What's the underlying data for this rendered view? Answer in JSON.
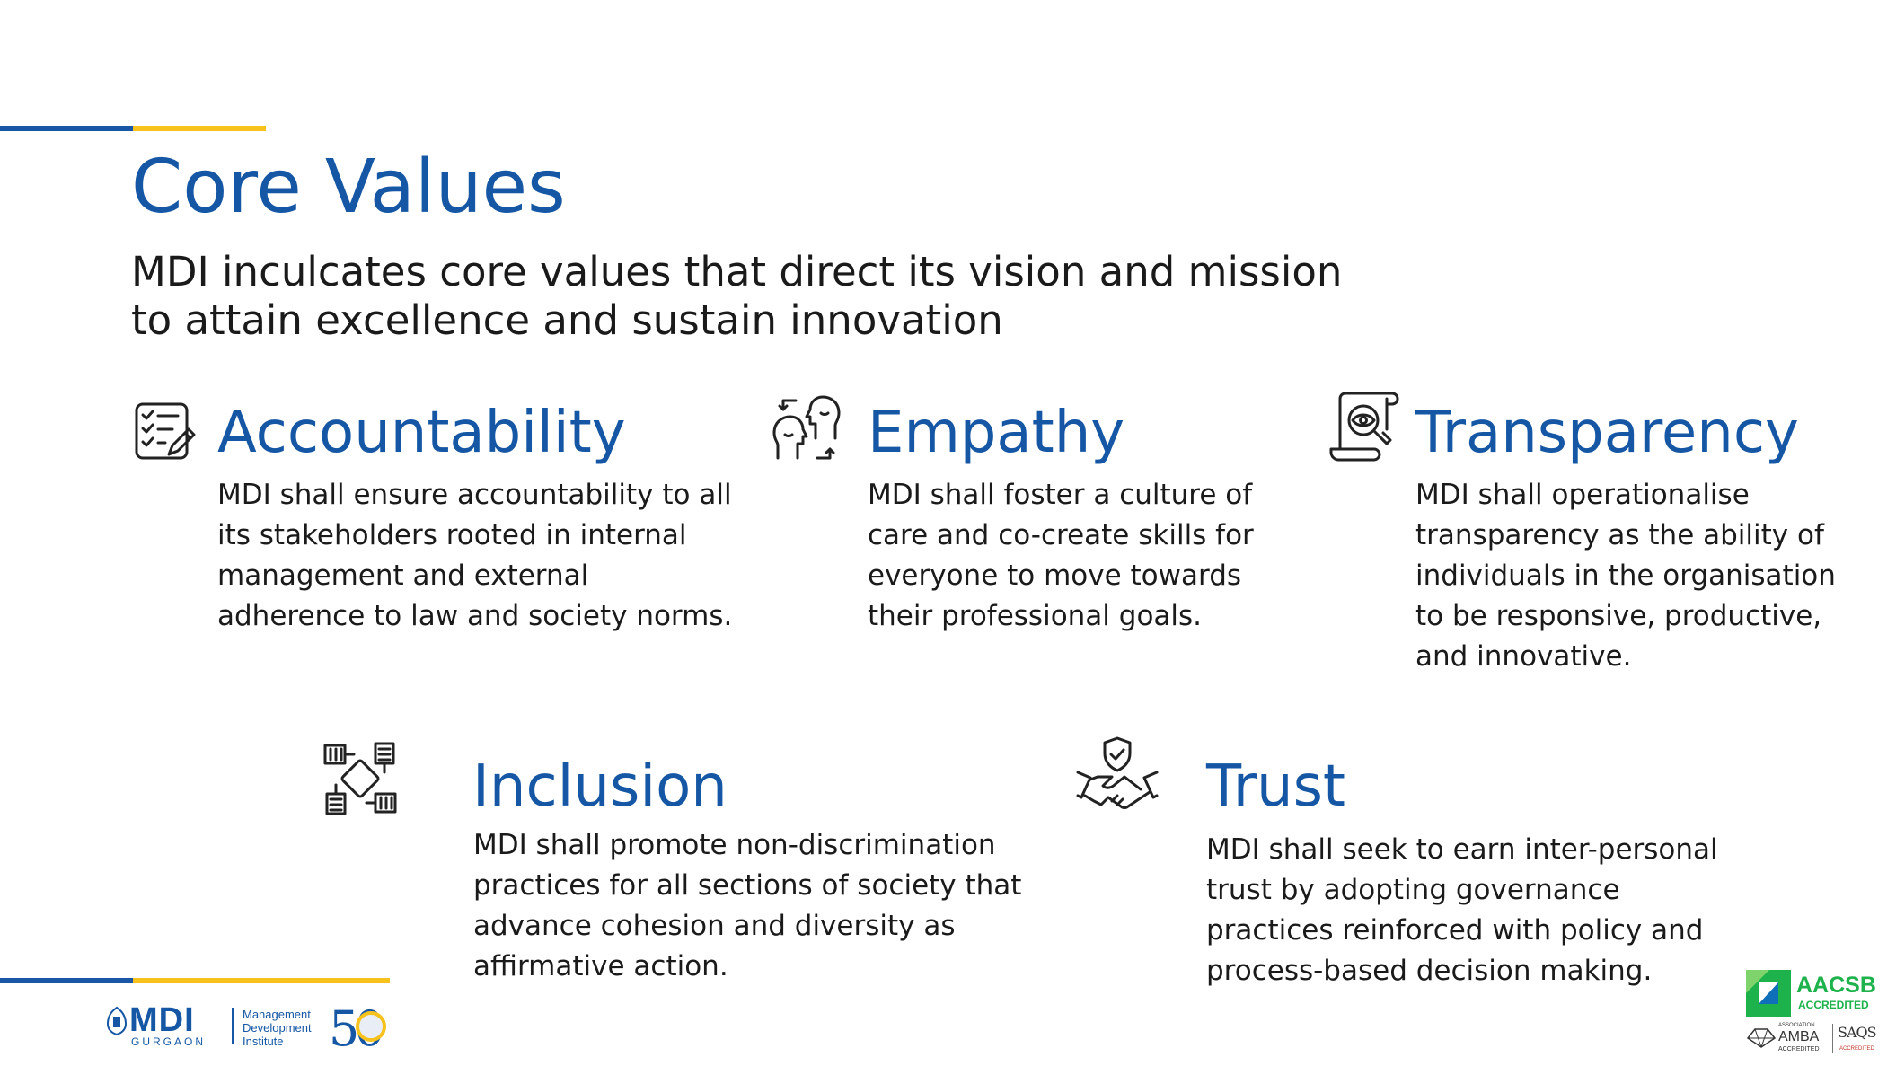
{
  "header": {
    "title": "Core Values",
    "subtitle_line1": "MDI inculcates core values that direct its vision and mission",
    "subtitle_line2": "to attain excellence and sustain innovation"
  },
  "values": [
    {
      "title": "Accountability",
      "icon": "checklist-pencil-icon",
      "lines": [
        "MDI shall ensure accountability to all",
        "its stakeholders rooted in internal",
        "management and external",
        "adherence to law and society norms."
      ]
    },
    {
      "title": "Empathy",
      "icon": "two-faces-exchange-icon",
      "lines": [
        "MDI shall foster a culture of",
        "care and co-create skills for",
        "everyone to move towards",
        "their professional goals."
      ]
    },
    {
      "title": "Transparency",
      "icon": "document-eye-magnifier-icon",
      "lines": [
        "MDI shall operationalise",
        "transparency as the ability of",
        "individuals in the organisation",
        "to be responsive, productive,",
        "and innovative."
      ]
    },
    {
      "title": "Inclusion",
      "icon": "joined-hands-icon",
      "lines": [
        "MDI shall promote non-discrimination",
        "practices for all sections of society that",
        "advance cohesion and diversity as",
        "affirmative action."
      ]
    },
    {
      "title": "Trust",
      "icon": "handshake-shield-icon",
      "lines": [
        "MDI shall seek to earn inter-personal",
        "trust by adopting governance",
        "practices reinforced with policy and",
        "process-based decision making."
      ]
    }
  ],
  "footer": {
    "logo_text": "MDI",
    "logo_sub": "GURGAON",
    "institute_line1": "Management",
    "institute_line2": "Development",
    "institute_line3": "Institute",
    "anniversary": "50",
    "aacsb": "AACSB",
    "aacsb_accredited": "ACCREDITED",
    "amba_association": "ASSOCIATION",
    "amba": "AMBA",
    "amba_accredited": "ACCREDITED",
    "saqs": "SAQS",
    "saqs_accredited": "ACCREDITED"
  },
  "colors": {
    "brand_blue": "#1557a4",
    "bar_blue": "#1a56a6",
    "bar_yellow": "#f7c21b",
    "aacsb_green": "#1db24b"
  }
}
